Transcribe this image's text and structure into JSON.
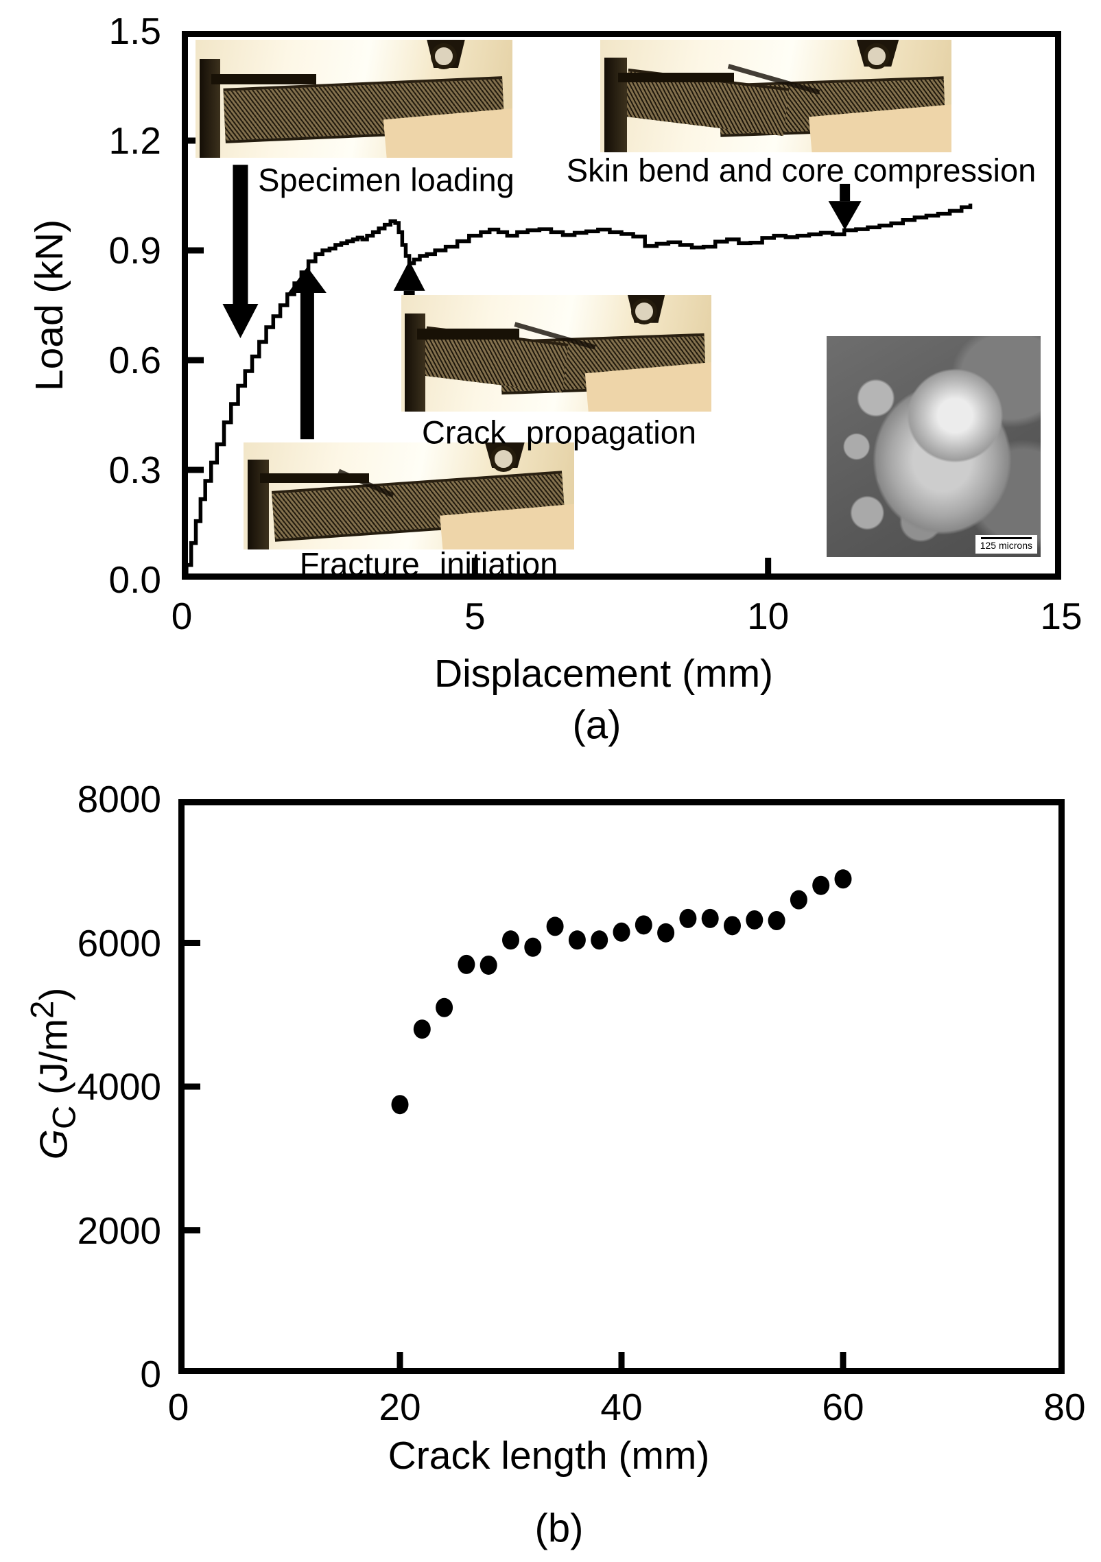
{
  "figure_background": "#ffffff",
  "ink_color": "#000000",
  "chart_data": [
    {
      "type": "line",
      "panel_tag": "(a)",
      "title": "",
      "xlabel": "Displacement (mm)",
      "ylabel": "Load (kN)",
      "xlim": [
        0,
        15
      ],
      "ylim": [
        0,
        1.5
      ],
      "grid": false,
      "x_ticks": [
        0,
        5,
        10,
        15
      ],
      "x_tick_labels": [
        "0",
        "5",
        "10",
        "15"
      ],
      "x_tick_marks": [
        5,
        10
      ],
      "y_ticks": [
        0.0,
        0.3,
        0.6,
        0.9,
        1.2,
        1.5
      ],
      "y_tick_labels": [
        "0.0",
        "0.3",
        "0.6",
        "0.9",
        "1.2",
        "1.5"
      ],
      "y_tick_marks": [
        0.3,
        0.6,
        0.9,
        1.2
      ],
      "series": [
        {
          "name": "load_displacement_curve",
          "points": [
            [
              0,
              0
            ],
            [
              0.08,
              0.04
            ],
            [
              0.16,
              0.1
            ],
            [
              0.24,
              0.16
            ],
            [
              0.32,
              0.22
            ],
            [
              0.4,
              0.27
            ],
            [
              0.5,
              0.32
            ],
            [
              0.6,
              0.37
            ],
            [
              0.72,
              0.43
            ],
            [
              0.84,
              0.48
            ],
            [
              0.96,
              0.53
            ],
            [
              1.08,
              0.57
            ],
            [
              1.2,
              0.61
            ],
            [
              1.32,
              0.65
            ],
            [
              1.44,
              0.69
            ],
            [
              1.56,
              0.72
            ],
            [
              1.68,
              0.75
            ],
            [
              1.8,
              0.78
            ],
            [
              1.92,
              0.81
            ],
            [
              2.04,
              0.84
            ],
            [
              2.16,
              0.87
            ],
            [
              2.28,
              0.89
            ],
            [
              2.4,
              0.9
            ],
            [
              2.52,
              0.905
            ],
            [
              2.62,
              0.915
            ],
            [
              2.72,
              0.92
            ],
            [
              2.82,
              0.925
            ],
            [
              2.92,
              0.93
            ],
            [
              3.0,
              0.935
            ],
            [
              3.08,
              0.93
            ],
            [
              3.16,
              0.94
            ],
            [
              3.26,
              0.95
            ],
            [
              3.36,
              0.96
            ],
            [
              3.46,
              0.97
            ],
            [
              3.56,
              0.98
            ],
            [
              3.64,
              0.975
            ],
            [
              3.7,
              0.95
            ],
            [
              3.76,
              0.915
            ],
            [
              3.82,
              0.885
            ],
            [
              3.88,
              0.865
            ],
            [
              3.96,
              0.875
            ],
            [
              4.06,
              0.885
            ],
            [
              4.18,
              0.89
            ],
            [
              4.32,
              0.9
            ],
            [
              4.5,
              0.91
            ],
            [
              4.7,
              0.925
            ],
            [
              4.9,
              0.94
            ],
            [
              5.1,
              0.95
            ],
            [
              5.25,
              0.957
            ],
            [
              5.4,
              0.95
            ],
            [
              5.55,
              0.94
            ],
            [
              5.72,
              0.95
            ],
            [
              5.9,
              0.955
            ],
            [
              6.1,
              0.958
            ],
            [
              6.3,
              0.95
            ],
            [
              6.5,
              0.942
            ],
            [
              6.7,
              0.948
            ],
            [
              6.9,
              0.952
            ],
            [
              7.1,
              0.957
            ],
            [
              7.3,
              0.95
            ],
            [
              7.5,
              0.945
            ],
            [
              7.7,
              0.938
            ],
            [
              7.9,
              0.912
            ],
            [
              8.1,
              0.918
            ],
            [
              8.3,
              0.922
            ],
            [
              8.5,
              0.915
            ],
            [
              8.7,
              0.908
            ],
            [
              8.9,
              0.91
            ],
            [
              9.1,
              0.924
            ],
            [
              9.3,
              0.93
            ],
            [
              9.5,
              0.92
            ],
            [
              9.7,
              0.921
            ],
            [
              9.9,
              0.934
            ],
            [
              10.1,
              0.94
            ],
            [
              10.3,
              0.936
            ],
            [
              10.5,
              0.94
            ],
            [
              10.7,
              0.944
            ],
            [
              10.9,
              0.948
            ],
            [
              11.1,
              0.944
            ],
            [
              11.3,
              0.955
            ],
            [
              11.5,
              0.958
            ],
            [
              11.7,
              0.963
            ],
            [
              11.9,
              0.968
            ],
            [
              12.1,
              0.974
            ],
            [
              12.3,
              0.983
            ],
            [
              12.5,
              0.99
            ],
            [
              12.7,
              0.995
            ],
            [
              12.9,
              1.0
            ],
            [
              13.1,
              1.008
            ],
            [
              13.3,
              1.018
            ],
            [
              13.45,
              1.028
            ]
          ]
        }
      ],
      "arrows": [
        {
          "name": "specimen-loading-arrow",
          "x": 1.0,
          "from": 1.134,
          "to": 0.66,
          "shaft_w": 22,
          "head_w": 52,
          "head_l": 50
        },
        {
          "name": "fracture-initiation-arrow",
          "x": 2.14,
          "from": 0.384,
          "to": 0.855,
          "shaft_w": 20,
          "head_w": 56,
          "head_l": 38
        },
        {
          "name": "crack-propagation-arrow",
          "x": 3.88,
          "from": 0.772,
          "to": 0.872,
          "shaft_w": 16,
          "head_w": 46,
          "head_l": 44
        },
        {
          "name": "skin-bend-arrow",
          "x": 11.31,
          "from": 1.082,
          "to": 0.956,
          "shaft_w": 15,
          "head_w": 48,
          "head_l": 42
        }
      ],
      "annotations": {
        "specimen_loading": "Specimen loading",
        "skin_bend": "Skin bend and core compression",
        "crack_propagation": "Crack propagation",
        "fracture_initiation": "Fracture initiation"
      },
      "sem_scale_label": "125 microns"
    },
    {
      "type": "scatter",
      "panel_tag": "(b)",
      "title": "",
      "xlabel": "Crack length (mm)",
      "ylabel": "Gc (J/m2)",
      "ylabel_parts": {
        "g": "G",
        "sub": "C",
        "unit_pre": " (J/m",
        "unit_sup": "2",
        "unit_post": ")"
      },
      "xlim": [
        0,
        80
      ],
      "ylim": [
        0,
        8000
      ],
      "grid": false,
      "x_ticks": [
        0,
        20,
        40,
        60,
        80
      ],
      "x_tick_labels": [
        "0",
        "20",
        "40",
        "60",
        "80"
      ],
      "x_tick_marks": [
        20,
        40,
        60
      ],
      "y_ticks": [
        0,
        2000,
        4000,
        6000,
        8000
      ],
      "y_tick_labels": [
        "0",
        "2000",
        "4000",
        "6000",
        "8000"
      ],
      "y_tick_marks": [
        2000,
        4000,
        6000
      ],
      "points": [
        [
          20,
          3750
        ],
        [
          22,
          4800
        ],
        [
          24,
          5100
        ],
        [
          26,
          5700
        ],
        [
          28,
          5690
        ],
        [
          30,
          6040
        ],
        [
          32,
          5940
        ],
        [
          34,
          6230
        ],
        [
          36,
          6040
        ],
        [
          38,
          6040
        ],
        [
          40,
          6150
        ],
        [
          42,
          6250
        ],
        [
          44,
          6140
        ],
        [
          46,
          6340
        ],
        [
          48,
          6340
        ],
        [
          50,
          6240
        ],
        [
          52,
          6320
        ],
        [
          54,
          6310
        ],
        [
          56,
          6600
        ],
        [
          58,
          6800
        ],
        [
          60,
          6890
        ]
      ]
    }
  ]
}
